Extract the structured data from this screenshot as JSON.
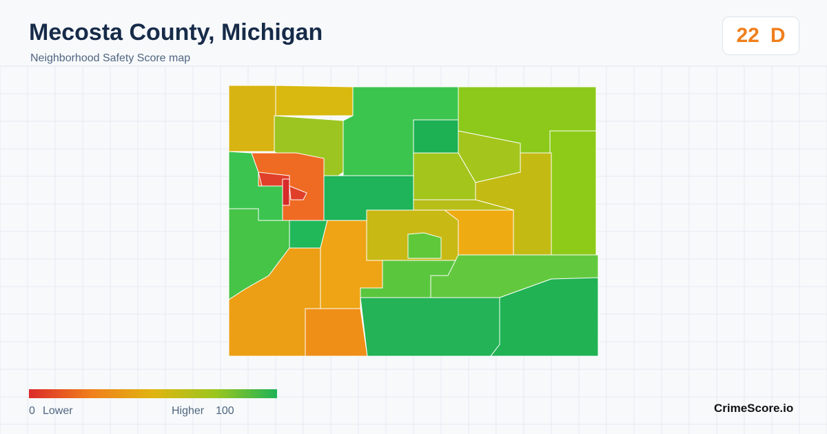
{
  "header": {
    "title": "Mecosta County, Michigan",
    "subtitle": "Neighborhood Safety Score map",
    "score": 22,
    "grade": "D"
  },
  "legend": {
    "min": 0,
    "low_label": "Lower",
    "high_label": "Higher",
    "max": 100
  },
  "footer": {
    "brand": "CrimeScore.io"
  }
}
